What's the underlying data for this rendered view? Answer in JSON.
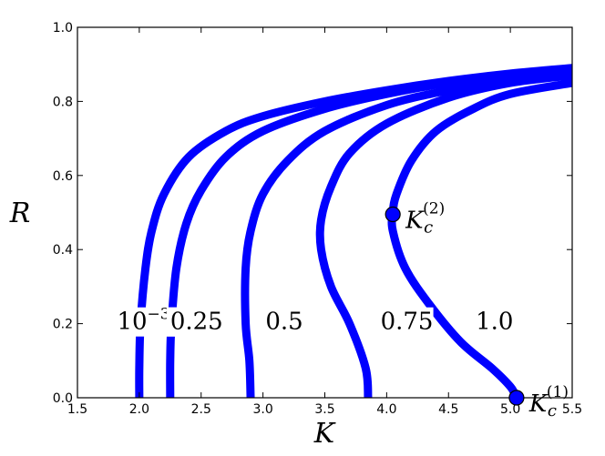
{
  "chart_data": {
    "type": "line",
    "xlabel": "K",
    "ylabel": "R",
    "xlim": [
      1.5,
      5.5
    ],
    "ylim": [
      0.0,
      1.0
    ],
    "x_ticks": [
      "1.5",
      "2.0",
      "2.5",
      "3.0",
      "3.5",
      "4.0",
      "4.5",
      "5.0",
      "5.5"
    ],
    "y_ticks": [
      "0.0",
      "0.2",
      "0.4",
      "0.6",
      "0.8",
      "1.0"
    ],
    "grid": false,
    "line_color": "#0000ff",
    "series": [
      {
        "label_base": "10",
        "label_exp": "−3",
        "label_x": 1.82,
        "label_y": 0.185,
        "points": [
          [
            2.0,
            0.0
          ],
          [
            2.0,
            0.08
          ],
          [
            2.01,
            0.2
          ],
          [
            2.05,
            0.35
          ],
          [
            2.1,
            0.45
          ],
          [
            2.2,
            0.55
          ],
          [
            2.4,
            0.65
          ],
          [
            2.7,
            0.72
          ],
          [
            3.0,
            0.76
          ],
          [
            3.5,
            0.8
          ],
          [
            4.0,
            0.83
          ],
          [
            4.5,
            0.855
          ],
          [
            5.0,
            0.875
          ],
          [
            5.5,
            0.89
          ]
        ]
      },
      {
        "label_base": "0.25",
        "label_x": 2.25,
        "label_y": 0.185,
        "points": [
          [
            2.25,
            0.0
          ],
          [
            2.25,
            0.1
          ],
          [
            2.26,
            0.2
          ],
          [
            2.3,
            0.35
          ],
          [
            2.38,
            0.47
          ],
          [
            2.5,
            0.56
          ],
          [
            2.7,
            0.65
          ],
          [
            3.0,
            0.72
          ],
          [
            3.5,
            0.78
          ],
          [
            4.0,
            0.82
          ],
          [
            4.5,
            0.85
          ],
          [
            5.0,
            0.87
          ],
          [
            5.5,
            0.885
          ]
        ]
      },
      {
        "label_base": "0.5",
        "label_x": 3.02,
        "label_y": 0.185,
        "points": [
          [
            2.9,
            0.0
          ],
          [
            2.89,
            0.1
          ],
          [
            2.86,
            0.2
          ],
          [
            2.86,
            0.35
          ],
          [
            2.9,
            0.45
          ],
          [
            3.0,
            0.55
          ],
          [
            3.2,
            0.64
          ],
          [
            3.5,
            0.72
          ],
          [
            4.0,
            0.79
          ],
          [
            4.5,
            0.83
          ],
          [
            5.0,
            0.86
          ],
          [
            5.5,
            0.88
          ]
        ]
      },
      {
        "label_base": "0.75",
        "label_x": 3.95,
        "label_y": 0.185,
        "points": [
          [
            3.85,
            0.0
          ],
          [
            3.83,
            0.08
          ],
          [
            3.7,
            0.2
          ],
          [
            3.55,
            0.3
          ],
          [
            3.47,
            0.4
          ],
          [
            3.47,
            0.48
          ],
          [
            3.55,
            0.57
          ],
          [
            3.7,
            0.66
          ],
          [
            4.0,
            0.74
          ],
          [
            4.5,
            0.81
          ],
          [
            5.0,
            0.85
          ],
          [
            5.5,
            0.87
          ]
        ]
      },
      {
        "label_base": "1.0",
        "label_x": 4.72,
        "label_y": 0.185,
        "points": [
          [
            5.05,
            0.0
          ],
          [
            5.0,
            0.03
          ],
          [
            4.85,
            0.08
          ],
          [
            4.6,
            0.15
          ],
          [
            4.35,
            0.25
          ],
          [
            4.15,
            0.35
          ],
          [
            4.05,
            0.45
          ],
          [
            4.05,
            0.5
          ],
          [
            4.08,
            0.55
          ],
          [
            4.2,
            0.64
          ],
          [
            4.4,
            0.72
          ],
          [
            4.7,
            0.78
          ],
          [
            5.0,
            0.82
          ],
          [
            5.5,
            0.85
          ]
        ]
      }
    ],
    "markers": [
      {
        "name": "Kc2",
        "x": 4.05,
        "y": 0.495,
        "base": "K",
        "sub": "c",
        "sup": "(2)"
      },
      {
        "name": "Kc1",
        "x": 5.05,
        "y": 0.0,
        "base": "K",
        "sub": "c",
        "sup": "(1)"
      }
    ]
  }
}
